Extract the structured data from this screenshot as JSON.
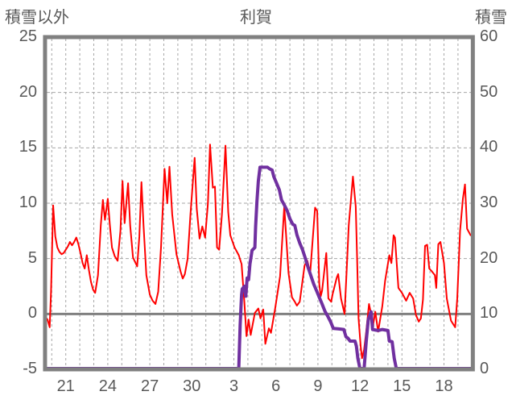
{
  "header": {
    "left_axis_title": "積雪以外",
    "chart_title": "利賀",
    "right_axis_title": "積雪"
  },
  "colors": {
    "temperature_line": "#FF0000",
    "snow_line": "#7030A0",
    "axis_border": "#808080",
    "zero_line": "#808080",
    "gridline": "#A6A6A6",
    "tick_text": "#595959"
  },
  "chart_data": {
    "type": "line",
    "title": "利賀",
    "legend": "none",
    "grid": "dashed vertical per day, dashed horizontal per 5 (left axis), solid line at left-axis 0",
    "left_axis": {
      "title": "積雪以外",
      "min": -5,
      "max": 25,
      "ticks": [
        25,
        20,
        15,
        10,
        5,
        0,
        -5
      ]
    },
    "right_axis": {
      "title": "積雪",
      "min": 0,
      "max": 60,
      "ticks": [
        60,
        50,
        40,
        30,
        20,
        10,
        0
      ]
    },
    "x_axis": {
      "tick_labels": [
        "21",
        "24",
        "27",
        "30",
        "3",
        "6",
        "9",
        "12",
        "15",
        "18"
      ],
      "tick_day_index": [
        0,
        3,
        6,
        9,
        12,
        15,
        18,
        21,
        24,
        27
      ],
      "day_index_range": [
        -1.48,
        29.06
      ],
      "note": "day_index 0 = day 21 of first month (month rolls over after day 30); labels are day of month"
    },
    "series": [
      {
        "name": "積雪以外",
        "axis": "left",
        "color": "#FF0000",
        "width": 2,
        "points": [
          [
            -1.45,
            -0.3
          ],
          [
            -1.3,
            -0.5
          ],
          [
            -1.15,
            -1.2
          ],
          [
            -1.05,
            2
          ],
          [
            -0.9,
            9.8
          ],
          [
            -0.75,
            7
          ],
          [
            -0.6,
            6
          ],
          [
            -0.45,
            5.6
          ],
          [
            -0.3,
            5.4
          ],
          [
            -0.15,
            5.5
          ],
          [
            0,
            5.8
          ],
          [
            0.15,
            6.1
          ],
          [
            0.3,
            6.5
          ],
          [
            0.45,
            6.2
          ],
          [
            0.6,
            6.5
          ],
          [
            0.75,
            6.9
          ],
          [
            0.9,
            6.3
          ],
          [
            1.05,
            5.5
          ],
          [
            1.2,
            4.6
          ],
          [
            1.35,
            4.1
          ],
          [
            1.5,
            5.3
          ],
          [
            1.65,
            4
          ],
          [
            1.8,
            2.9
          ],
          [
            1.95,
            2.2
          ],
          [
            2.1,
            1.9
          ],
          [
            2.3,
            3.5
          ],
          [
            2.5,
            8
          ],
          [
            2.65,
            10.3
          ],
          [
            2.8,
            8.5
          ],
          [
            3,
            10.4
          ],
          [
            3.15,
            8
          ],
          [
            3.3,
            6
          ],
          [
            3.5,
            5.2
          ],
          [
            3.7,
            4.8
          ],
          [
            3.9,
            7.5
          ],
          [
            4.05,
            12
          ],
          [
            4.2,
            8.2
          ],
          [
            4.45,
            11.8
          ],
          [
            4.6,
            8
          ],
          [
            4.8,
            5.1
          ],
          [
            5.1,
            4.3
          ],
          [
            5.25,
            7
          ],
          [
            5.4,
            11.9
          ],
          [
            5.55,
            8
          ],
          [
            5.75,
            3.5
          ],
          [
            6,
            1.75
          ],
          [
            6.2,
            1.2
          ],
          [
            6.4,
            0.9
          ],
          [
            6.6,
            2
          ],
          [
            6.8,
            6
          ],
          [
            7.05,
            13.1
          ],
          [
            7.25,
            10
          ],
          [
            7.4,
            13.3
          ],
          [
            7.6,
            9
          ],
          [
            7.9,
            5.4
          ],
          [
            8.2,
            3.8
          ],
          [
            8.35,
            3.2
          ],
          [
            8.5,
            3.6
          ],
          [
            8.7,
            5
          ],
          [
            8.9,
            9
          ],
          [
            9.2,
            14.1
          ],
          [
            9.35,
            9.5
          ],
          [
            9.55,
            6.8
          ],
          [
            9.75,
            7.9
          ],
          [
            9.95,
            6.9
          ],
          [
            10.15,
            10
          ],
          [
            10.3,
            15.3
          ],
          [
            10.5,
            11.4
          ],
          [
            10.65,
            11.5
          ],
          [
            10.8,
            6
          ],
          [
            10.95,
            5.8
          ],
          [
            11.15,
            9
          ],
          [
            11.4,
            15.2
          ],
          [
            11.6,
            9.2
          ],
          [
            11.75,
            7.1
          ],
          [
            12.05,
            6
          ],
          [
            12.35,
            5.3
          ],
          [
            12.55,
            4.5
          ],
          [
            12.75,
            1
          ],
          [
            12.9,
            -2
          ],
          [
            13.05,
            -0.5
          ],
          [
            13.2,
            -1.9
          ],
          [
            13.5,
            0.1
          ],
          [
            13.75,
            0.5
          ],
          [
            13.9,
            -0.4
          ],
          [
            14.1,
            0.4
          ],
          [
            14.25,
            -2.7
          ],
          [
            14.5,
            -1.3
          ],
          [
            14.65,
            -1.7
          ],
          [
            14.95,
            0.5
          ],
          [
            15.3,
            3.4
          ],
          [
            15.6,
            9.7
          ],
          [
            15.9,
            3.7
          ],
          [
            16.15,
            1.5
          ],
          [
            16.35,
            1.1
          ],
          [
            16.5,
            0.75
          ],
          [
            16.7,
            1.1
          ],
          [
            17.05,
            4.4
          ],
          [
            17.25,
            4.8
          ],
          [
            17.45,
            3.7
          ],
          [
            17.8,
            9.6
          ],
          [
            17.95,
            9.3
          ],
          [
            18.1,
            2.7
          ],
          [
            18.2,
            1.6
          ],
          [
            18.3,
            2.1
          ],
          [
            18.6,
            5.5
          ],
          [
            18.75,
            1.4
          ],
          [
            18.95,
            1.1
          ],
          [
            19.05,
            1.8
          ],
          [
            19.35,
            3.3
          ],
          [
            19.45,
            3.6
          ],
          [
            19.65,
            1.4
          ],
          [
            19.9,
            0
          ],
          [
            20.05,
            3.9
          ],
          [
            20.2,
            8
          ],
          [
            20.5,
            12.4
          ],
          [
            20.7,
            9.7
          ],
          [
            20.8,
            5
          ],
          [
            20.9,
            -0.4
          ],
          [
            21.05,
            -2.9
          ],
          [
            21.15,
            -4
          ],
          [
            21.3,
            -3.2
          ],
          [
            21.45,
            -1.6
          ],
          [
            21.65,
            0.9
          ],
          [
            21.95,
            -0.95
          ],
          [
            22.1,
            0.2
          ],
          [
            22.3,
            -1.6
          ],
          [
            22.6,
            0.7
          ],
          [
            22.8,
            3
          ],
          [
            23.1,
            5.3
          ],
          [
            23.25,
            4.6
          ],
          [
            23.4,
            7.1
          ],
          [
            23.5,
            6.9
          ],
          [
            23.75,
            2.35
          ],
          [
            24,
            1.9
          ],
          [
            24.3,
            1.2
          ],
          [
            24.55,
            1.9
          ],
          [
            24.8,
            1.4
          ],
          [
            25,
            -0.1
          ],
          [
            25.2,
            -0.7
          ],
          [
            25.35,
            -0.4
          ],
          [
            25.5,
            1.3
          ],
          [
            25.65,
            6.15
          ],
          [
            25.8,
            6.25
          ],
          [
            25.95,
            4.1
          ],
          [
            26.1,
            3.9
          ],
          [
            26.35,
            3.5
          ],
          [
            26.45,
            2.35
          ],
          [
            26.6,
            6.3
          ],
          [
            26.75,
            6.5
          ],
          [
            27,
            4.6
          ],
          [
            27.2,
            1.4
          ],
          [
            27.5,
            -0.6
          ],
          [
            27.8,
            -1.2
          ],
          [
            27.95,
            1.4
          ],
          [
            28.15,
            7.5
          ],
          [
            28.35,
            10.4
          ],
          [
            28.5,
            11.7
          ],
          [
            28.65,
            7.7
          ],
          [
            28.9,
            7.1
          ]
        ]
      },
      {
        "name": "積雪",
        "axis": "right",
        "color": "#7030A0",
        "width": 4,
        "points": [
          [
            -1.45,
            0
          ],
          [
            12.35,
            0
          ],
          [
            12.45,
            8
          ],
          [
            12.55,
            13.5
          ],
          [
            12.6,
            14.5
          ],
          [
            12.75,
            15
          ],
          [
            12.85,
            13.2
          ],
          [
            12.95,
            16.5
          ],
          [
            13.05,
            16.2
          ],
          [
            13.15,
            19
          ],
          [
            13.3,
            21.5
          ],
          [
            13.5,
            22
          ],
          [
            13.55,
            25.7
          ],
          [
            13.65,
            30.4
          ],
          [
            13.75,
            34
          ],
          [
            13.87,
            36.5
          ],
          [
            14.4,
            36.5
          ],
          [
            14.55,
            36.2
          ],
          [
            14.73,
            36
          ],
          [
            14.85,
            34.8
          ],
          [
            15.05,
            33.6
          ],
          [
            15.25,
            32.4
          ],
          [
            15.4,
            30.6
          ],
          [
            15.6,
            29.7
          ],
          [
            15.8,
            28.7
          ],
          [
            16,
            27.2
          ],
          [
            16.2,
            26.2
          ],
          [
            16.35,
            26
          ],
          [
            16.5,
            24.3
          ],
          [
            16.7,
            22.8
          ],
          [
            16.9,
            21.6
          ],
          [
            17.1,
            20.1
          ],
          [
            17.3,
            18.4
          ],
          [
            17.5,
            16.9
          ],
          [
            17.7,
            15.4
          ],
          [
            17.9,
            14.2
          ],
          [
            18.1,
            13
          ],
          [
            18.3,
            11.8
          ],
          [
            18.5,
            10.5
          ],
          [
            18.7,
            9.6
          ],
          [
            18.9,
            8.6
          ],
          [
            19.1,
            7.4
          ],
          [
            19.5,
            7.3
          ],
          [
            19.85,
            7.2
          ],
          [
            20,
            5.9
          ],
          [
            20.15,
            5.6
          ],
          [
            20.3,
            5.1
          ],
          [
            20.65,
            5.1
          ],
          [
            20.75,
            4.2
          ],
          [
            20.85,
            2
          ],
          [
            21,
            0
          ],
          [
            21.3,
            0
          ],
          [
            21.45,
            5
          ],
          [
            21.6,
            9
          ],
          [
            21.8,
            10.4
          ],
          [
            21.9,
            7.2
          ],
          [
            22.3,
            7
          ],
          [
            22.6,
            7.2
          ],
          [
            23,
            7
          ],
          [
            23.1,
            5.1
          ],
          [
            23.3,
            5
          ],
          [
            23.45,
            2
          ],
          [
            23.6,
            0
          ],
          [
            29.05,
            0
          ]
        ]
      }
    ]
  }
}
